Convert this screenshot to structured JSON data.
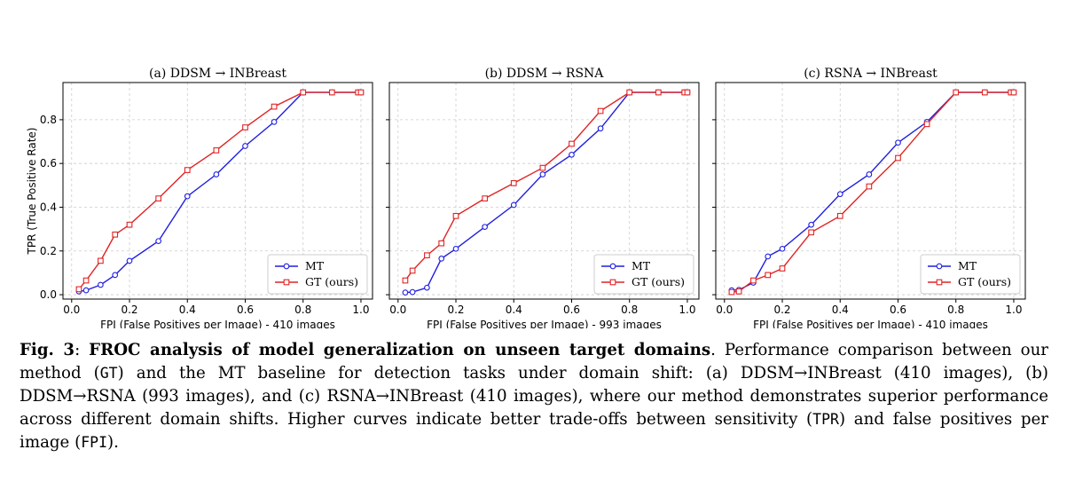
{
  "figure": {
    "ylabel": "TPR (True Positive Rate)",
    "caption": {
      "label": "Fig. 3",
      "colon": ": ",
      "title": "FROC analysis of model generalization on unseen target domains",
      "t1": ". Performance comparison between our method (",
      "gt": "GT",
      "t2": ") and the MT baseline for detection tasks under domain shift: (a) DDSM→INBreast (410 images), (b) DDSM→RSNA (993 images), and (c) RSNA→INBreast (410 images), where our method demonstrates superior performance across different domain shifts. Higher curves indicate better trade-offs between sensitivity (",
      "tpr": "TPR",
      "t3": ") and false positives per image (",
      "fpi": "FPI",
      "t4": ")."
    }
  },
  "colors": {
    "mt": "#1f1fe0",
    "gt": "#e02424",
    "grid": "#cccccc"
  },
  "chart_data": [
    {
      "type": "line",
      "title": "(a) DDSM → INBreast",
      "xlabel": "FPI (False Positives per Image) - 410 images",
      "xlim": [
        -0.03,
        1.04
      ],
      "ylim": [
        -0.02,
        0.97
      ],
      "xticks": [
        "0.0",
        "0.2",
        "0.4",
        "0.6",
        "0.8",
        "1.0"
      ],
      "yticks": [
        "0.0",
        "0.2",
        "0.4",
        "0.6",
        "0.8"
      ],
      "grid": true,
      "legend": "lower right",
      "series": [
        {
          "name": "MT",
          "marker": "circle",
          "x": [
            0.025,
            0.05,
            0.1,
            0.15,
            0.2,
            0.3,
            0.4,
            0.5,
            0.6,
            0.7,
            0.8,
            0.9,
            0.99,
            1.0
          ],
          "y": [
            0.015,
            0.02,
            0.045,
            0.09,
            0.155,
            0.245,
            0.45,
            0.55,
            0.68,
            0.79,
            0.925,
            0.925,
            0.925,
            0.925
          ]
        },
        {
          "name": "GT (ours)",
          "marker": "square",
          "x": [
            0.025,
            0.05,
            0.1,
            0.15,
            0.2,
            0.3,
            0.4,
            0.5,
            0.6,
            0.7,
            0.8,
            0.9,
            0.99,
            1.0
          ],
          "y": [
            0.025,
            0.065,
            0.155,
            0.275,
            0.32,
            0.44,
            0.57,
            0.66,
            0.765,
            0.86,
            0.925,
            0.925,
            0.925,
            0.925
          ]
        }
      ]
    },
    {
      "type": "line",
      "title": "(b) DDSM → RSNA",
      "xlabel": "FPI (False Positives per Image) - 993 images",
      "xlim": [
        -0.03,
        1.04
      ],
      "ylim": [
        -0.02,
        0.97
      ],
      "xticks": [
        "0.0",
        "0.2",
        "0.4",
        "0.6",
        "0.8",
        "1.0"
      ],
      "yticks": [],
      "grid": true,
      "legend": "lower right",
      "series": [
        {
          "name": "MT",
          "marker": "circle",
          "x": [
            0.025,
            0.05,
            0.1,
            0.15,
            0.2,
            0.3,
            0.4,
            0.5,
            0.6,
            0.7,
            0.8,
            0.9,
            0.99,
            1.0
          ],
          "y": [
            0.01,
            0.012,
            0.032,
            0.165,
            0.21,
            0.31,
            0.41,
            0.55,
            0.64,
            0.76,
            0.925,
            0.925,
            0.925,
            0.925
          ]
        },
        {
          "name": "GT (ours)",
          "marker": "square",
          "x": [
            0.025,
            0.05,
            0.1,
            0.15,
            0.2,
            0.3,
            0.4,
            0.5,
            0.6,
            0.7,
            0.8,
            0.9,
            0.99,
            1.0
          ],
          "y": [
            0.065,
            0.11,
            0.18,
            0.235,
            0.36,
            0.44,
            0.51,
            0.58,
            0.69,
            0.84,
            0.925,
            0.925,
            0.925,
            0.925
          ]
        }
      ]
    },
    {
      "type": "line",
      "title": "(c) RSNA → INBreast",
      "xlabel": "FPI (False Positives per Image) - 410 images",
      "xlim": [
        -0.03,
        1.04
      ],
      "ylim": [
        -0.02,
        0.97
      ],
      "xticks": [
        "0.0",
        "0.2",
        "0.4",
        "0.6",
        "0.8",
        "1.0"
      ],
      "yticks": [],
      "grid": true,
      "legend": "lower right",
      "series": [
        {
          "name": "MT",
          "marker": "circle",
          "x": [
            0.025,
            0.05,
            0.1,
            0.15,
            0.2,
            0.3,
            0.4,
            0.5,
            0.6,
            0.7,
            0.8,
            0.9,
            0.99,
            1.0
          ],
          "y": [
            0.02,
            0.022,
            0.055,
            0.175,
            0.21,
            0.32,
            0.46,
            0.55,
            0.695,
            0.79,
            0.925,
            0.925,
            0.925,
            0.925
          ]
        },
        {
          "name": "GT (ours)",
          "marker": "square",
          "x": [
            0.025,
            0.05,
            0.1,
            0.15,
            0.2,
            0.3,
            0.4,
            0.5,
            0.6,
            0.7,
            0.8,
            0.9,
            0.99,
            1.0
          ],
          "y": [
            0.012,
            0.015,
            0.065,
            0.09,
            0.12,
            0.285,
            0.36,
            0.495,
            0.625,
            0.78,
            0.925,
            0.925,
            0.925,
            0.925
          ]
        }
      ]
    }
  ]
}
